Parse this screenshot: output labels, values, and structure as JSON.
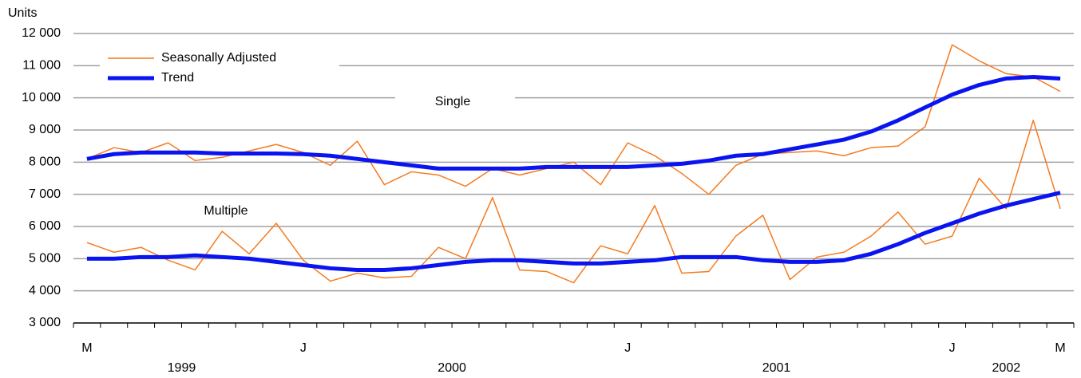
{
  "chart_data": {
    "type": "line",
    "y_axis_label": "Units",
    "annotations": [
      "Single",
      "Multiple"
    ],
    "categories": [
      "M",
      null,
      null,
      null,
      null,
      null,
      null,
      null,
      "J",
      null,
      null,
      null,
      null,
      null,
      null,
      null,
      null,
      null,
      null,
      null,
      "J",
      null,
      null,
      null,
      null,
      null,
      null,
      null,
      null,
      null,
      null,
      null,
      "J",
      null,
      null,
      null,
      "M"
    ],
    "year_labels": [
      "1999",
      "2000",
      "2001",
      "2002"
    ],
    "series": [
      {
        "name": "Seasonally Adjusted",
        "color": "#f47b20",
        "line_width": 1.5,
        "single": [
          8100,
          8450,
          8300,
          8600,
          8050,
          8150,
          8350,
          8550,
          8300,
          7900,
          8650,
          7300,
          7700,
          7600,
          7250,
          7800,
          7600,
          7800,
          8000,
          7300,
          8600,
          8200,
          7650,
          7000,
          7900,
          8250,
          8300,
          8350,
          8200,
          8450,
          8500,
          9100,
          11650,
          11150,
          10750,
          10650,
          10200
        ],
        "multiple": [
          5500,
          5200,
          5350,
          4950,
          4650,
          5850,
          5150,
          6100,
          4950,
          4300,
          4550,
          4400,
          4450,
          5350,
          5000,
          6900,
          4650,
          4600,
          4250,
          5400,
          5150,
          6650,
          4550,
          4600,
          5700,
          6350,
          4350,
          5050,
          5200,
          5700,
          6450,
          5450,
          5700,
          7500,
          6550,
          9300,
          6550
        ]
      },
      {
        "name": "Trend",
        "color": "#0a14f0",
        "line_width": 5,
        "single": [
          8100,
          8250,
          8300,
          8300,
          8300,
          8270,
          8270,
          8270,
          8250,
          8200,
          8100,
          8000,
          7900,
          7800,
          7800,
          7800,
          7800,
          7850,
          7850,
          7850,
          7850,
          7900,
          7950,
          8050,
          8200,
          8250,
          8400,
          8550,
          8700,
          8950,
          9300,
          9700,
          10100,
          10400,
          10600,
          10650,
          10600
        ],
        "multiple": [
          5000,
          5000,
          5050,
          5050,
          5100,
          5050,
          5000,
          4900,
          4800,
          4700,
          4650,
          4650,
          4700,
          4800,
          4900,
          4950,
          4950,
          4900,
          4850,
          4850,
          4900,
          4950,
          5050,
          5050,
          5050,
          4950,
          4900,
          4900,
          4950,
          5150,
          5450,
          5800,
          6100,
          6400,
          6650,
          6850,
          7050
        ]
      }
    ],
    "ylim": [
      3000,
      12000
    ],
    "yticks": [
      {
        "value": 3000,
        "label": "3 000"
      },
      {
        "value": 4000,
        "label": "4 000"
      },
      {
        "value": 5000,
        "label": "5 000"
      },
      {
        "value": 6000,
        "label": "6 000"
      },
      {
        "value": 7000,
        "label": "7 000"
      },
      {
        "value": 8000,
        "label": "8 000"
      },
      {
        "value": 9000,
        "label": "9 000"
      },
      {
        "value": 10000,
        "label": "10 000"
      },
      {
        "value": 11000,
        "label": "11 000"
      },
      {
        "value": 12000,
        "label": "12 000"
      }
    ],
    "grid": true,
    "legend": "top-left"
  }
}
